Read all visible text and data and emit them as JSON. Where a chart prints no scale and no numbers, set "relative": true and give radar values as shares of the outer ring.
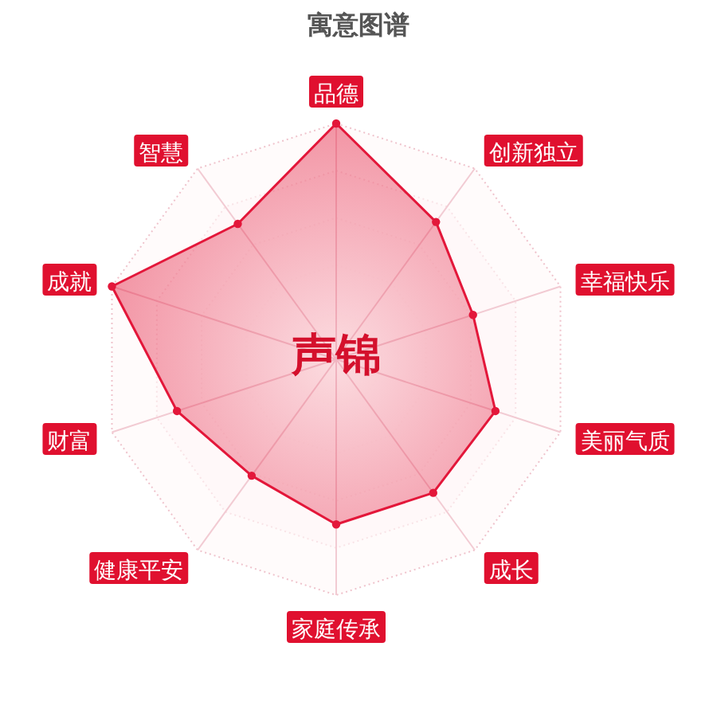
{
  "chart_data": {
    "type": "radar",
    "title": "寓意图谱",
    "categories": [
      "品德",
      "创新独立",
      "幸福快乐",
      "美丽气质",
      "成长",
      "家庭传承",
      "健康平安",
      "财富",
      "成就",
      "智慧"
    ],
    "relative": true,
    "series": [
      {
        "color": "#e3173a",
        "values": [
          1.0,
          0.72,
          0.61,
          0.71,
          0.7,
          0.7,
          0.61,
          0.71,
          1.0,
          0.71
        ]
      }
    ],
    "annotations": [
      "声锦"
    ],
    "grid": true,
    "marker": "circle"
  }
}
